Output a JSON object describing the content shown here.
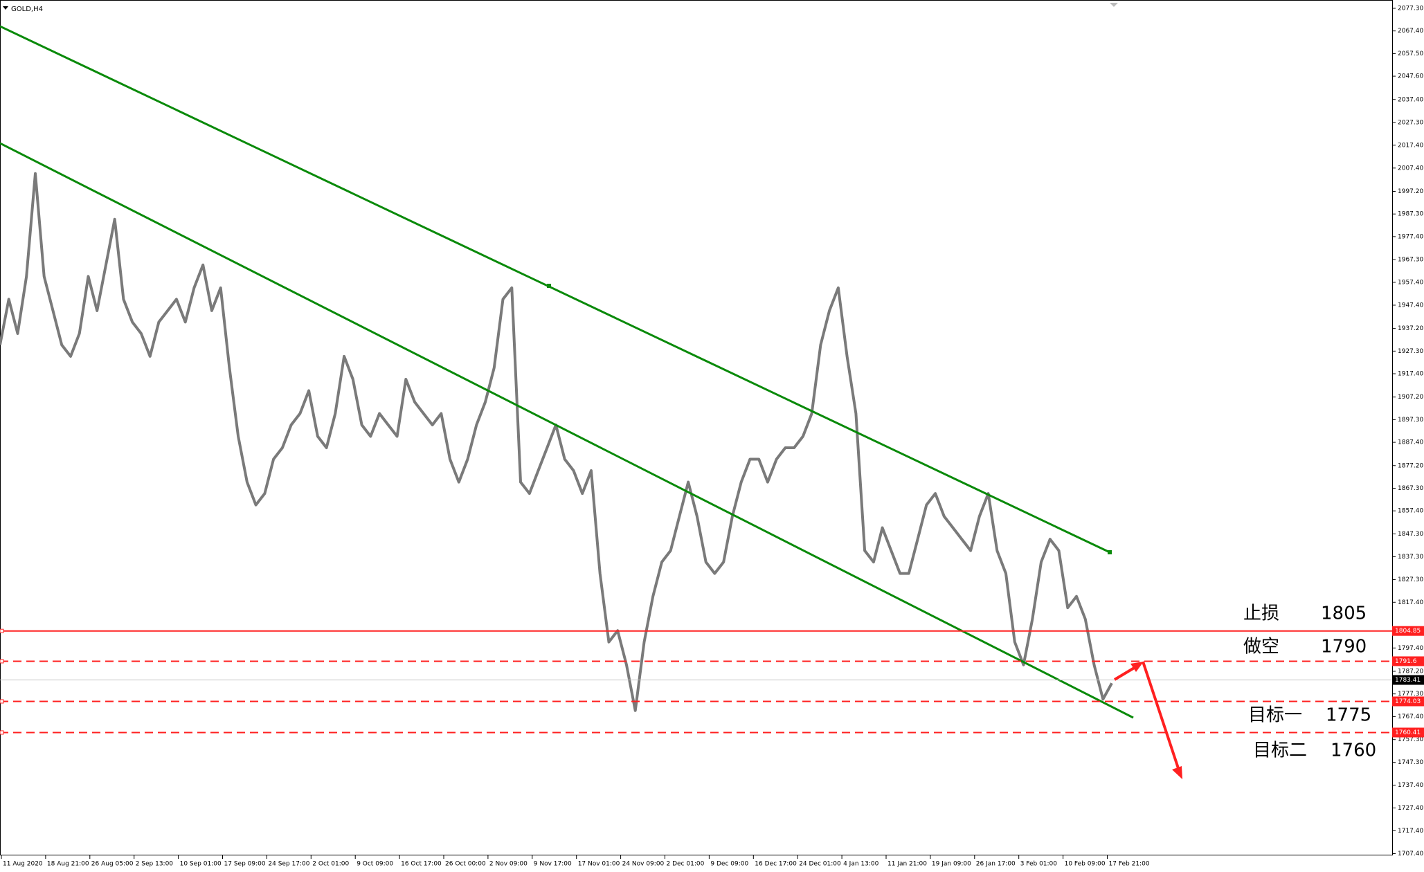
{
  "symbol": "GOLD,H4",
  "price_axis": [
    {
      "value": 2077.3,
      "label": "2077.30"
    },
    {
      "value": 2067.4,
      "label": "2067.40"
    },
    {
      "value": 2057.5,
      "label": "2057.50"
    },
    {
      "value": 2047.6,
      "label": "2047.60"
    },
    {
      "value": 2037.4,
      "label": "2037.40"
    },
    {
      "value": 2027.3,
      "label": "2027.30"
    },
    {
      "value": 2017.4,
      "label": "2017.40"
    },
    {
      "value": 2007.4,
      "label": "2007.40"
    },
    {
      "value": 1997.2,
      "label": "1997.20"
    },
    {
      "value": 1987.3,
      "label": "1987.30"
    },
    {
      "value": 1977.4,
      "label": "1977.40"
    },
    {
      "value": 1967.3,
      "label": "1967.30"
    },
    {
      "value": 1957.4,
      "label": "1957.40"
    },
    {
      "value": 1947.4,
      "label": "1947.40"
    },
    {
      "value": 1937.2,
      "label": "1937.20"
    },
    {
      "value": 1927.3,
      "label": "1927.30"
    },
    {
      "value": 1917.4,
      "label": "1917.40"
    },
    {
      "value": 1907.2,
      "label": "1907.20"
    },
    {
      "value": 1897.3,
      "label": "1897.30"
    },
    {
      "value": 1887.4,
      "label": "1887.40"
    },
    {
      "value": 1877.2,
      "label": "1877.20"
    },
    {
      "value": 1867.3,
      "label": "1867.30"
    },
    {
      "value": 1857.4,
      "label": "1857.40"
    },
    {
      "value": 1847.3,
      "label": "1847.30"
    },
    {
      "value": 1837.3,
      "label": "1837.30"
    },
    {
      "value": 1827.3,
      "label": "1827.30"
    },
    {
      "value": 1817.4,
      "label": "1817.40"
    },
    {
      "value": 1797.4,
      "label": "1797.40"
    },
    {
      "value": 1787.2,
      "label": "1787.20"
    },
    {
      "value": 1777.3,
      "label": "1777.30"
    },
    {
      "value": 1767.4,
      "label": "1767.40"
    },
    {
      "value": 1757.3,
      "label": "1757.30"
    },
    {
      "value": 1747.3,
      "label": "1747.30"
    },
    {
      "value": 1737.4,
      "label": "1737.40"
    },
    {
      "value": 1727.4,
      "label": "1727.40"
    },
    {
      "value": 1717.4,
      "label": "1717.40"
    },
    {
      "value": 1707.4,
      "label": "1707.40"
    }
  ],
  "price_range": [
    1707.4,
    2077.3
  ],
  "time_axis": [
    "11 Aug 2020",
    "18 Aug 21:00",
    "26 Aug 05:00",
    "2 Sep 13:00",
    "10 Sep 01:00",
    "17 Sep 09:00",
    "24 Sep 17:00",
    "2 Oct 01:00",
    "9 Oct 09:00",
    "16 Oct 17:00",
    "26 Oct 00:00",
    "2 Nov 09:00",
    "9 Nov 17:00",
    "17 Nov 01:00",
    "24 Nov 09:00",
    "2 Dec 01:00",
    "9 Dec 09:00",
    "16 Dec 17:00",
    "24 Dec 01:00",
    "4 Jan 13:00",
    "11 Jan 21:00",
    "19 Jan 09:00",
    "26 Jan 17:00",
    "3 Feb 01:00",
    "10 Feb 09:00",
    "17 Feb 21:00"
  ],
  "price_path": [
    1930,
    1950,
    1935,
    1960,
    2005,
    1960,
    1945,
    1930,
    1925,
    1935,
    1960,
    1945,
    1965,
    1985,
    1950,
    1940,
    1935,
    1925,
    1940,
    1945,
    1950,
    1940,
    1955,
    1965,
    1945,
    1955,
    1920,
    1890,
    1870,
    1860,
    1865,
    1880,
    1885,
    1895,
    1900,
    1910,
    1890,
    1885,
    1900,
    1925,
    1915,
    1895,
    1890,
    1900,
    1895,
    1890,
    1915,
    1905,
    1900,
    1895,
    1900,
    1880,
    1870,
    1880,
    1895,
    1905,
    1920,
    1950,
    1955,
    1870,
    1865,
    1875,
    1885,
    1895,
    1880,
    1875,
    1865,
    1875,
    1830,
    1800,
    1805,
    1790,
    1770,
    1800,
    1820,
    1835,
    1840,
    1855,
    1870,
    1855,
    1835,
    1830,
    1835,
    1855,
    1870,
    1880,
    1880,
    1870,
    1880,
    1885,
    1885,
    1890,
    1900,
    1930,
    1945,
    1955,
    1925,
    1900,
    1840,
    1835,
    1850,
    1840,
    1830,
    1830,
    1845,
    1860,
    1865,
    1855,
    1850,
    1845,
    1840,
    1855,
    1865,
    1840,
    1830,
    1800,
    1790,
    1810,
    1835,
    1845,
    1840,
    1815,
    1820,
    1810,
    1790,
    1775,
    1782
  ],
  "current_price": 1783.41,
  "levels": [
    {
      "value": 1804.85,
      "style": "solid"
    },
    {
      "value": 1791.6,
      "style": "dashed"
    },
    {
      "value": 1774.03,
      "style": "dashed"
    },
    {
      "value": 1760.41,
      "style": "dashed"
    }
  ],
  "annotations": [
    [
      "止损",
      "1805"
    ],
    [
      "做空",
      "1790"
    ],
    [
      "目标一",
      "1775"
    ],
    [
      "目标二",
      "1760"
    ]
  ]
}
